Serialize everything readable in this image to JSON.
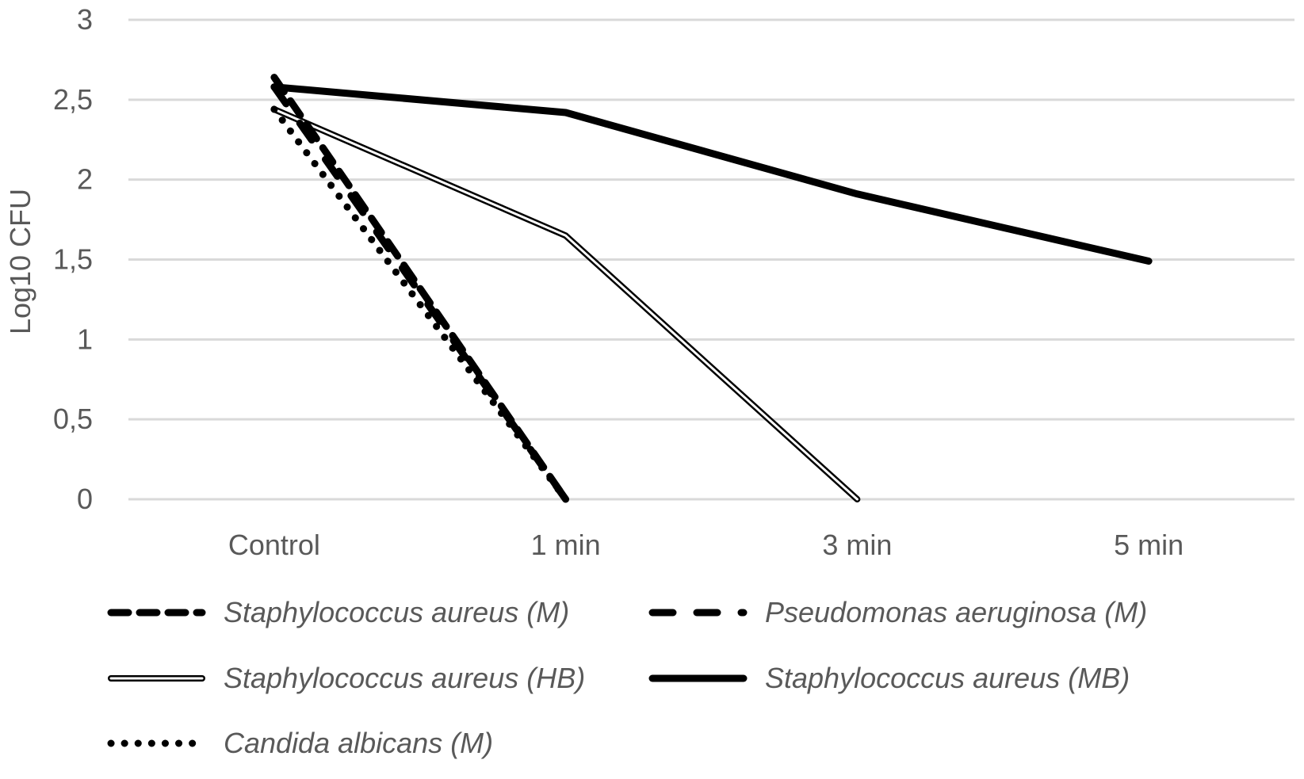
{
  "chart_data": {
    "type": "line",
    "title": "",
    "xlabel": "",
    "ylabel": "Log10 CFU",
    "categories": [
      "Control",
      "1 min",
      "3 min",
      "5 min"
    ],
    "ylim": [
      0,
      3
    ],
    "yticks": [
      0,
      0.5,
      1,
      1.5,
      2,
      2.5,
      3
    ],
    "ytick_labels": [
      "0",
      "0,5",
      "1",
      "1,5",
      "2",
      "2,5",
      "3"
    ],
    "grid": true,
    "legend_position": "bottom",
    "series": [
      {
        "name": "Staphylococcus aureus (M)",
        "style": "dash",
        "values": [
          2.64,
          0,
          null,
          null
        ]
      },
      {
        "name": "Pseudomonas aeruginosa (M)",
        "style": "longdash",
        "values": [
          2.58,
          0,
          null,
          null
        ]
      },
      {
        "name": "Staphylococcus aureus (HB)",
        "style": "double",
        "values": [
          2.44,
          1.65,
          0,
          null
        ]
      },
      {
        "name": "Staphylococcus aureus (MB)",
        "style": "solid-thick",
        "values": [
          2.58,
          2.42,
          1.91,
          1.49
        ]
      },
      {
        "name": "Candida albicans (M)",
        "style": "dot",
        "values": [
          2.44,
          0,
          null,
          null
        ]
      }
    ]
  },
  "colors": {
    "series": "#000000",
    "text": "#595959",
    "grid": "#d9d9d9"
  }
}
